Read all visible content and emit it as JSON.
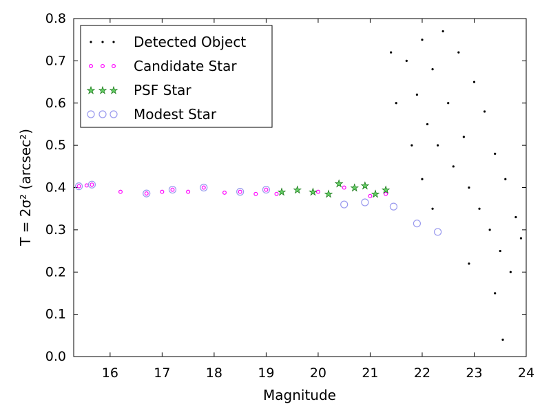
{
  "chart_data": {
    "type": "scatter",
    "xlabel": "Magnitude",
    "ylabel": "T = 2σ² (arcsec²)",
    "xlim": [
      15.3,
      24
    ],
    "ylim": [
      0.0,
      0.8
    ],
    "xticks": [
      "16",
      "17",
      "18",
      "19",
      "20",
      "21",
      "22",
      "23",
      "24"
    ],
    "yticks": [
      "0.0",
      "0.1",
      "0.2",
      "0.3",
      "0.4",
      "0.5",
      "0.6",
      "0.7",
      "0.8"
    ],
    "legend_position": "top-left",
    "grid": false,
    "series": [
      {
        "name": "Detected Object",
        "marker": "dot",
        "color": "#000000",
        "points": [
          [
            21.4,
            0.72
          ],
          [
            21.7,
            0.7
          ],
          [
            21.9,
            0.62
          ],
          [
            22.0,
            0.75
          ],
          [
            22.1,
            0.55
          ],
          [
            22.2,
            0.68
          ],
          [
            22.3,
            0.5
          ],
          [
            22.4,
            0.77
          ],
          [
            22.5,
            0.6
          ],
          [
            22.6,
            0.45
          ],
          [
            22.7,
            0.72
          ],
          [
            22.8,
            0.52
          ],
          [
            22.9,
            0.4
          ],
          [
            23.0,
            0.65
          ],
          [
            23.1,
            0.35
          ],
          [
            23.2,
            0.58
          ],
          [
            23.3,
            0.3
          ],
          [
            23.4,
            0.48
          ],
          [
            23.5,
            0.25
          ],
          [
            23.6,
            0.42
          ],
          [
            23.7,
            0.2
          ],
          [
            23.8,
            0.33
          ],
          [
            23.9,
            0.28
          ],
          [
            23.55,
            0.04
          ],
          [
            23.4,
            0.15
          ],
          [
            22.9,
            0.22
          ],
          [
            22.2,
            0.35
          ],
          [
            22.0,
            0.42
          ],
          [
            21.8,
            0.5
          ],
          [
            21.5,
            0.6
          ]
        ]
      },
      {
        "name": "Candidate Star",
        "marker": "magenta-dot",
        "color": "#ff00ff",
        "points": [
          [
            15.4,
            0.403
          ],
          [
            15.55,
            0.405
          ],
          [
            15.65,
            0.407
          ],
          [
            16.2,
            0.39
          ],
          [
            16.7,
            0.386
          ],
          [
            17.0,
            0.39
          ],
          [
            17.2,
            0.395
          ],
          [
            17.5,
            0.39
          ],
          [
            17.8,
            0.4
          ],
          [
            18.2,
            0.388
          ],
          [
            18.5,
            0.39
          ],
          [
            18.8,
            0.385
          ],
          [
            19.0,
            0.395
          ],
          [
            19.2,
            0.385
          ],
          [
            20.0,
            0.39
          ],
          [
            20.5,
            0.4
          ],
          [
            21.0,
            0.38
          ],
          [
            21.3,
            0.385
          ]
        ]
      },
      {
        "name": "PSF Star",
        "marker": "star",
        "color": "#00aa00",
        "points": [
          [
            19.3,
            0.39
          ],
          [
            19.6,
            0.395
          ],
          [
            19.9,
            0.39
          ],
          [
            20.2,
            0.385
          ],
          [
            20.4,
            0.41
          ],
          [
            20.7,
            0.4
          ],
          [
            20.9,
            0.405
          ],
          [
            21.1,
            0.385
          ],
          [
            21.3,
            0.395
          ]
        ]
      },
      {
        "name": "Modest Star",
        "marker": "open-circle",
        "color": "#9999ee",
        "points": [
          [
            15.4,
            0.403
          ],
          [
            15.65,
            0.407
          ],
          [
            16.7,
            0.386
          ],
          [
            17.2,
            0.395
          ],
          [
            17.8,
            0.4
          ],
          [
            18.5,
            0.39
          ],
          [
            19.0,
            0.395
          ],
          [
            20.5,
            0.36
          ],
          [
            20.9,
            0.365
          ],
          [
            21.45,
            0.355
          ],
          [
            21.9,
            0.315
          ],
          [
            22.3,
            0.295
          ]
        ]
      }
    ]
  }
}
